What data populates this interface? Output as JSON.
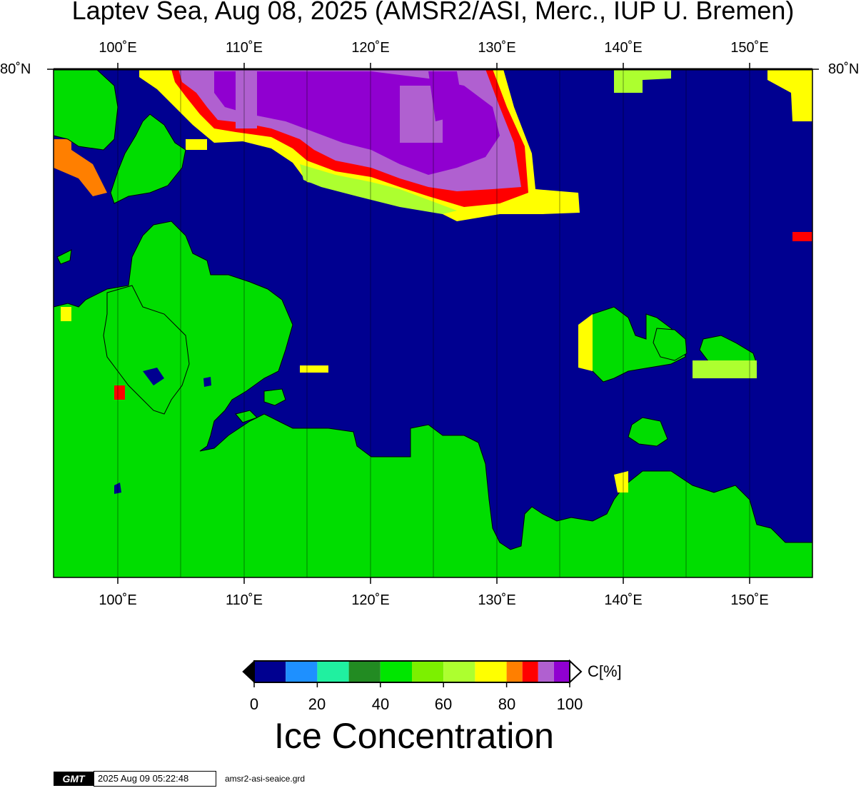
{
  "title": "Laptev Sea, Aug 08, 2025 (AMSR2/ASI, Merc., IUP U. Bremen)",
  "lon_ticks": [
    "100˚E",
    "110˚E",
    "120˚E",
    "130˚E",
    "140˚E",
    "150˚E"
  ],
  "lat_label": "80˚N",
  "colorbar": {
    "unit": "C[%]",
    "tick_labels": [
      "0",
      "20",
      "40",
      "60",
      "80",
      "100"
    ],
    "colors": [
      "#000090",
      "#1e90ff",
      "#20f0a0",
      "#228b22",
      "#00e600",
      "#7cf000",
      "#adff2f",
      "#ffff00",
      "#ff7f00",
      "#ff0000",
      "#b060d0",
      "#9000d0"
    ],
    "land_color": "#00dd00",
    "water_color": "#000090"
  },
  "big_title": "Ice Concentration",
  "footer": {
    "logo": "GMT",
    "timestamp": "2025 Aug 09 05:22:48",
    "filename": "amsr2-asi-seaice.grd"
  }
}
